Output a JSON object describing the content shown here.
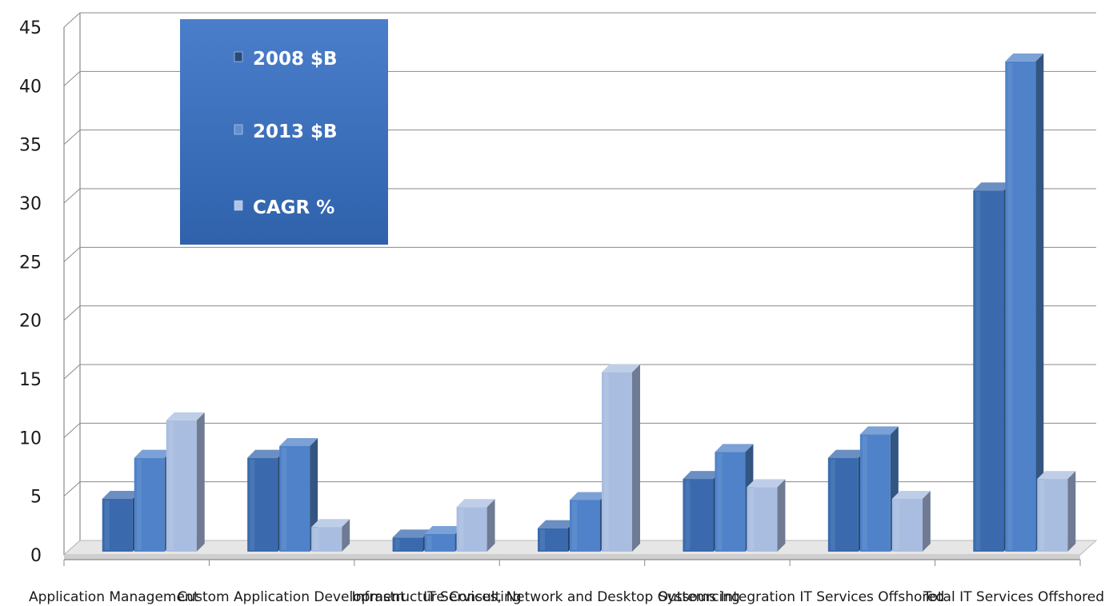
{
  "chart_data": {
    "type": "bar",
    "title": "",
    "xlabel": "",
    "ylabel": "",
    "categories": [
      "Application Management",
      "Custom Application Development",
      "Infrastructure Consulting",
      "IT Services, Network and Desktop Outsourcing",
      "Systems Integration",
      "IT Services Offshored",
      "Total IT Services Offshored"
    ],
    "series": [
      {
        "name": "2008 $B",
        "color": "#3a6aad",
        "values": [
          4.5,
          8.0,
          1.2,
          2.0,
          6.2,
          8.0,
          30.8
        ]
      },
      {
        "name": "2013 $B",
        "color": "#4f82c8",
        "values": [
          8.0,
          9.0,
          1.5,
          4.4,
          8.5,
          10.0,
          41.8
        ]
      },
      {
        "name": "CAGR %",
        "color": "#a9bde0",
        "values": [
          11.2,
          2.1,
          3.8,
          15.3,
          5.5,
          4.5,
          6.2
        ]
      }
    ],
    "ylim": [
      0,
      45
    ],
    "yticks": [
      0,
      5,
      10,
      15,
      20,
      25,
      30,
      35,
      40,
      45
    ],
    "grid": true,
    "legend": "top-left"
  }
}
